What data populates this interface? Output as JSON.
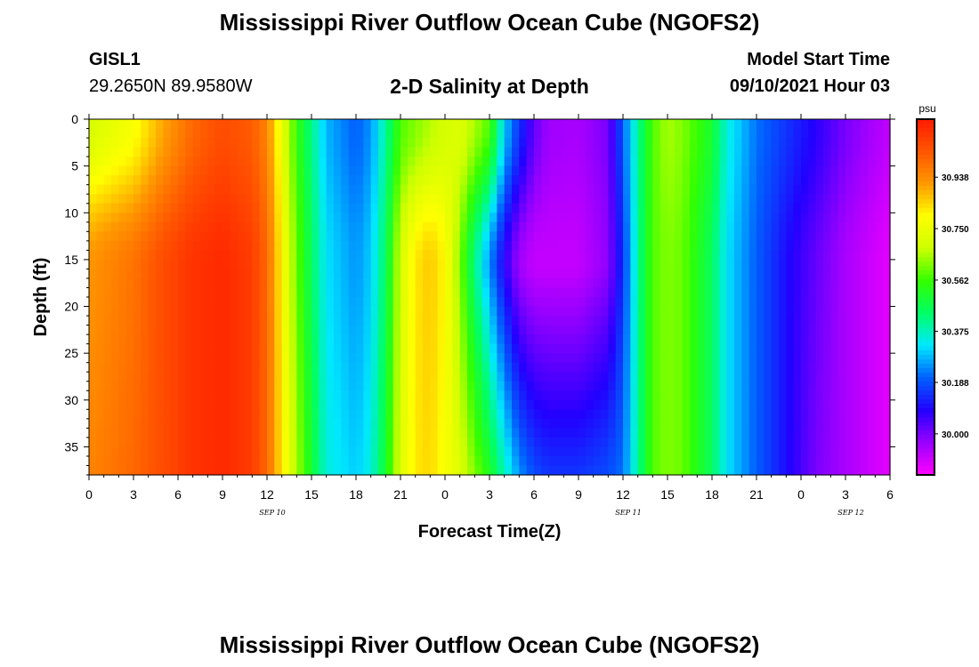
{
  "header": {
    "title": "Mississippi River Outflow Ocean Cube (NGOFS2)",
    "station_id": "GISL1",
    "station_coords": "29.2650N  89.9580W",
    "plot_title": "2-D Salinity at Depth",
    "model_start_label": "Model Start Time",
    "model_start_value": "09/10/2021 Hour 03"
  },
  "footer": {
    "title": "Mississippi River Outflow Ocean Cube (NGOFS2)"
  },
  "chart_data": {
    "type": "heatmap",
    "title": "2-D Salinity at Depth",
    "xlabel": "Forecast Time(Z)",
    "ylabel": "Depth (ft)",
    "x_tick_labels": [
      "0",
      "3",
      "6",
      "9",
      "12",
      "15",
      "18",
      "21",
      "0",
      "3",
      "6",
      "9",
      "12",
      "15",
      "18",
      "21",
      "0",
      "3",
      "6"
    ],
    "date_labels": [
      "SEP 10",
      "SEP 11",
      "SEP 12"
    ],
    "date_label_positions_hours": [
      12,
      36,
      51
    ],
    "xlim_hours": [
      0,
      54
    ],
    "ylim": [
      0,
      38
    ],
    "y_ticks": [
      0,
      5,
      10,
      15,
      20,
      25,
      30,
      35
    ],
    "colorbar": {
      "unit": "psu",
      "range": [
        29.85,
        31.15
      ],
      "tick_values": [
        30.938,
        30.75,
        30.562,
        30.375,
        30.188,
        30.0
      ],
      "colors": [
        "#ff00ff",
        "#9900ff",
        "#2200ff",
        "#0060ff",
        "#00e8ff",
        "#00ff66",
        "#33ff00",
        "#ccff00",
        "#ffff00",
        "#ff9900",
        "#ff5500",
        "#ff1a00"
      ]
    },
    "salinity_profiles": [
      {
        "hour": 0,
        "surface": 30.7,
        "mid": 30.92,
        "bottom": 30.95
      },
      {
        "hour": 3,
        "surface": 30.78,
        "mid": 30.98,
        "bottom": 31.0
      },
      {
        "hour": 5,
        "surface": 30.9,
        "mid": 31.05,
        "bottom": 31.05
      },
      {
        "hour": 7,
        "surface": 31.0,
        "mid": 31.1,
        "bottom": 31.1
      },
      {
        "hour": 9,
        "surface": 31.05,
        "mid": 31.12,
        "bottom": 31.12
      },
      {
        "hour": 11,
        "surface": 31.02,
        "mid": 31.08,
        "bottom": 31.08
      },
      {
        "hour": 12,
        "surface": 30.95,
        "mid": 31.0,
        "bottom": 31.0
      },
      {
        "hour": 13,
        "surface": 30.75,
        "mid": 30.8,
        "bottom": 30.82
      },
      {
        "hour": 14,
        "surface": 30.55,
        "mid": 30.6,
        "bottom": 30.65
      },
      {
        "hour": 15,
        "surface": 30.42,
        "mid": 30.45,
        "bottom": 30.5
      },
      {
        "hour": 16,
        "surface": 30.28,
        "mid": 30.32,
        "bottom": 30.35
      },
      {
        "hour": 18,
        "surface": 30.2,
        "mid": 30.25,
        "bottom": 30.3
      },
      {
        "hour": 19,
        "surface": 30.25,
        "mid": 30.3,
        "bottom": 30.35
      },
      {
        "hour": 20,
        "surface": 30.4,
        "mid": 30.45,
        "bottom": 30.5
      },
      {
        "hour": 21,
        "surface": 30.58,
        "mid": 30.7,
        "bottom": 30.72
      },
      {
        "hour": 22,
        "surface": 30.62,
        "mid": 30.82,
        "bottom": 30.82
      },
      {
        "hour": 23,
        "surface": 30.66,
        "mid": 30.86,
        "bottom": 30.84
      },
      {
        "hour": 24,
        "surface": 30.7,
        "mid": 30.8,
        "bottom": 30.78
      },
      {
        "hour": 25,
        "surface": 30.72,
        "mid": 30.62,
        "bottom": 30.72
      },
      {
        "hour": 26,
        "surface": 30.65,
        "mid": 30.42,
        "bottom": 30.62
      },
      {
        "hour": 27,
        "surface": 30.58,
        "mid": 30.25,
        "bottom": 30.52
      },
      {
        "hour": 28,
        "surface": 30.3,
        "mid": 30.08,
        "bottom": 30.38
      },
      {
        "hour": 29,
        "surface": 30.15,
        "mid": 29.96,
        "bottom": 30.25
      },
      {
        "hour": 30,
        "surface": 30.02,
        "mid": 29.92,
        "bottom": 30.18
      },
      {
        "hour": 31,
        "surface": 29.96,
        "mid": 29.92,
        "bottom": 30.15
      },
      {
        "hour": 33,
        "surface": 29.95,
        "mid": 29.92,
        "bottom": 30.15
      },
      {
        "hour": 35,
        "surface": 30.0,
        "mid": 29.98,
        "bottom": 30.18
      },
      {
        "hour": 36,
        "surface": 30.2,
        "mid": 30.15,
        "bottom": 30.22
      },
      {
        "hour": 37,
        "surface": 30.4,
        "mid": 30.4,
        "bottom": 30.4
      },
      {
        "hour": 38,
        "surface": 30.58,
        "mid": 30.58,
        "bottom": 30.58
      },
      {
        "hour": 39,
        "surface": 30.65,
        "mid": 30.62,
        "bottom": 30.62
      },
      {
        "hour": 40,
        "surface": 30.62,
        "mid": 30.6,
        "bottom": 30.6
      },
      {
        "hour": 42,
        "surface": 30.5,
        "mid": 30.45,
        "bottom": 30.45
      },
      {
        "hour": 43,
        "surface": 30.35,
        "mid": 30.32,
        "bottom": 30.32
      },
      {
        "hour": 45,
        "surface": 30.22,
        "mid": 30.2,
        "bottom": 30.2
      },
      {
        "hour": 47,
        "surface": 30.15,
        "mid": 30.1,
        "bottom": 30.1
      },
      {
        "hour": 49,
        "surface": 30.08,
        "mid": 30.02,
        "bottom": 30.0
      },
      {
        "hour": 51,
        "surface": 30.0,
        "mid": 29.95,
        "bottom": 29.95
      },
      {
        "hour": 54,
        "surface": 29.92,
        "mid": 29.88,
        "bottom": 29.88
      }
    ]
  }
}
